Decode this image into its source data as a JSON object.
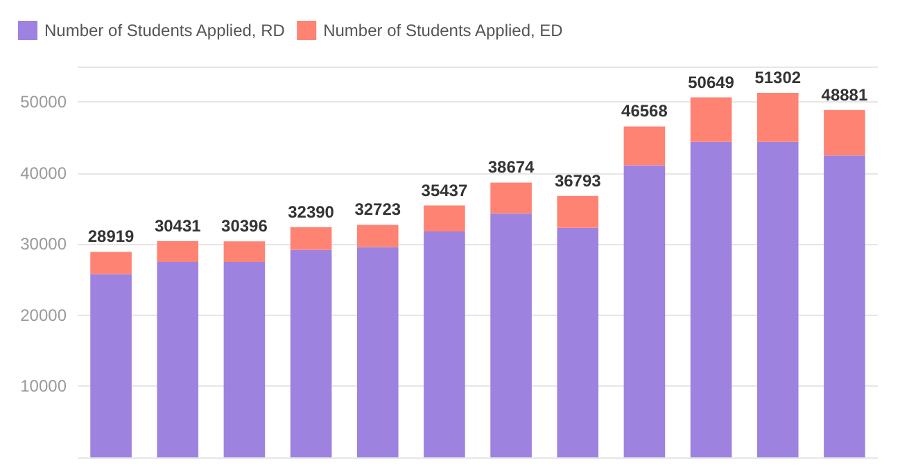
{
  "chart_data": {
    "type": "bar",
    "stacked": true,
    "categories": [
      null,
      null,
      null,
      null,
      null,
      null,
      null,
      null,
      null,
      null,
      null,
      null
    ],
    "series": [
      {
        "name": "Number of Students Applied, RD",
        "color": "#9e82e0",
        "values": [
          25800,
          27500,
          27500,
          29200,
          29600,
          31800,
          34300,
          32300,
          41100,
          44400,
          44400,
          42500
        ]
      },
      {
        "name": "Number of Students Applied, ED",
        "color": "#ff8373",
        "values": [
          3119,
          2931,
          2896,
          3190,
          3123,
          3637,
          4374,
          4493,
          5468,
          6249,
          6902,
          6381
        ]
      }
    ],
    "totals": [
      "28919",
      "30431",
      "30396",
      "32390",
      "32723",
      "35437",
      "38674",
      "36793",
      "46568",
      "50649",
      "51302",
      "48881"
    ],
    "ylim": [
      0,
      55000
    ],
    "yticks": [
      10000,
      20000,
      30000,
      40000,
      50000
    ],
    "grid": "y",
    "legend": "top left",
    "tick_labels": "y"
  }
}
